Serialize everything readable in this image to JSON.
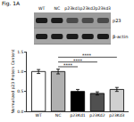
{
  "figure_label": "Fig. 1A",
  "blot": {
    "lanes": [
      "WT",
      "NC",
      "p23kd1",
      "p23kd2",
      "p23kd3"
    ],
    "rows": [
      "p23",
      "β-actin"
    ]
  },
  "chart_data": {
    "type": "bar",
    "categories": [
      "WT",
      "NC",
      "p23Kd1",
      "p23Kd2",
      "p23Kd3"
    ],
    "values": [
      1.0,
      1.0,
      0.5,
      0.45,
      0.55
    ],
    "errors": [
      0.05,
      0.06,
      0.05,
      0.04,
      0.05
    ],
    "colors": [
      "#ffffff",
      "#b0b0b0",
      "#000000",
      "#505050",
      "#d0d0d0"
    ],
    "y_label": "Normalized p23 Protein Content",
    "ylim": [
      0,
      1.5
    ],
    "yticks": [
      {
        "value": 0,
        "label": "0.0"
      },
      {
        "value": 0.5,
        "label": "0.5"
      },
      {
        "value": 1,
        "label": "1.0"
      },
      {
        "value": 1.5,
        "label": "1.5"
      }
    ],
    "annotations": [
      {
        "text": "****",
        "from": "NC",
        "to": "p23Kd1",
        "y": 1.12
      },
      {
        "text": "****",
        "from": "NC",
        "to": "p23Kd2",
        "y": 1.24
      },
      {
        "text": "****",
        "from": "NC",
        "to": "p23Kd3",
        "y": 1.36
      }
    ]
  }
}
